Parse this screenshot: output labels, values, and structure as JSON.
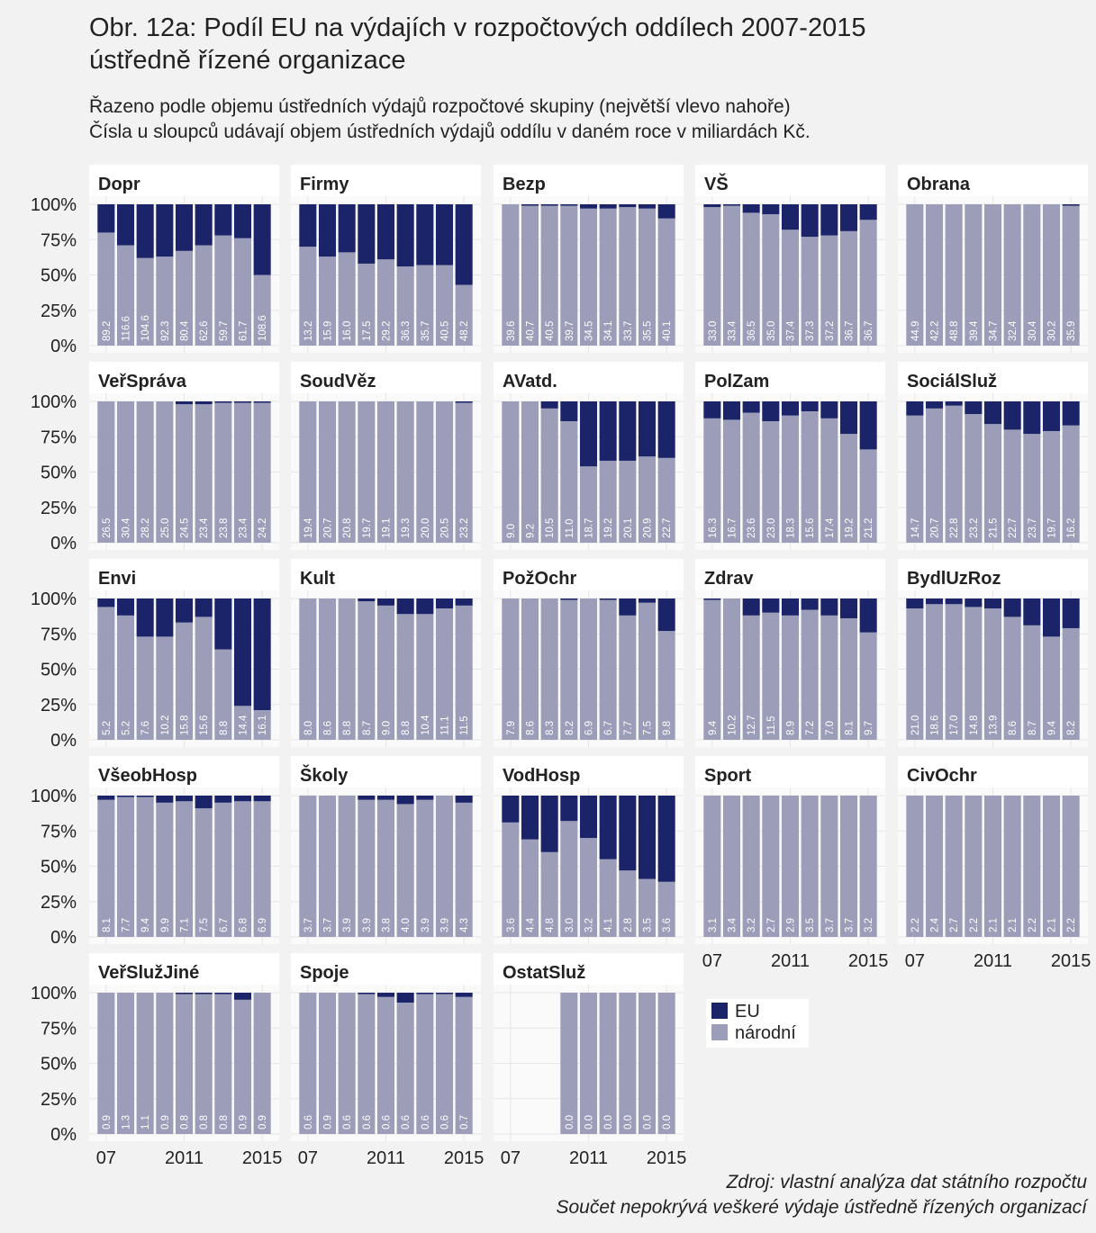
{
  "chart_data": {
    "type": "bar",
    "stacked": true,
    "title": [
      "Obr. 12a: Podíl EU na výdajích v rozpočtových oddílech 2007-2015",
      "ústředně řízené organizace"
    ],
    "subtitle": [
      "Řazeno podle objemu ústředních výdajů rozpočtové skupiny (největší vlevo nahoře)",
      "Čísla u sloupců udávají objem ústředních výdajů oddílu v daném roce v miliardách Kč."
    ],
    "caption": [
      "Zdroj: vlastní analýza dat státního rozpočtu",
      "Součet nepokrývá veškeré výdaje ústředně řízených organizací"
    ],
    "x": [
      2007,
      2008,
      2009,
      2010,
      2011,
      2012,
      2013,
      2014,
      2015
    ],
    "xlim": [
      2006.5,
      2015.5
    ],
    "xticks": [
      {
        "value": 2007,
        "label": "07"
      },
      2011,
      2015
    ],
    "ylim": [
      0,
      100
    ],
    "yticks": [
      {
        "value": 0,
        "label": "0%"
      },
      {
        "value": 25,
        "label": "25%"
      },
      {
        "value": 50,
        "label": "50%"
      },
      {
        "value": 75,
        "label": "75%"
      },
      {
        "value": 100,
        "label": "100%"
      }
    ],
    "grid": true,
    "series": [
      {
        "name": "EU",
        "color": "#1b2468"
      },
      {
        "name": "národní",
        "color": "#9b9db9"
      }
    ],
    "panels": [
      {
        "name": "Dopr",
        "eu": [
          20,
          29,
          38,
          37,
          33,
          29,
          22,
          24,
          50
        ],
        "national": [
          80,
          71,
          62,
          63,
          67,
          71,
          78,
          76,
          50
        ],
        "value_labels": [
          "89.2",
          "116.6",
          "104.6",
          "92.3",
          "80.4",
          "62.6",
          "59.7",
          "61.7",
          "108.6"
        ]
      },
      {
        "name": "Firmy",
        "eu": [
          30,
          37,
          34,
          42,
          39,
          44,
          43,
          43,
          57
        ],
        "national": [
          70,
          63,
          66,
          58,
          61,
          56,
          57,
          57,
          43
        ],
        "value_labels": [
          "13.2",
          "15.9",
          "16.0",
          "17.5",
          "29.2",
          "36.3",
          "35.7",
          "40.5",
          "48.2"
        ]
      },
      {
        "name": "Bezp",
        "eu": [
          0,
          1,
          1,
          1,
          3,
          3,
          2,
          3,
          10
        ],
        "national": [
          100,
          99,
          99,
          99,
          97,
          97,
          98,
          97,
          90
        ],
        "value_labels": [
          "39.6",
          "40.7",
          "40.5",
          "39.7",
          "34.5",
          "34.1",
          "33.7",
          "35.5",
          "40.1"
        ]
      },
      {
        "name": "VŠ",
        "eu": [
          2,
          1,
          6,
          7,
          18,
          23,
          22,
          19,
          11
        ],
        "national": [
          98,
          99,
          94,
          93,
          82,
          77,
          78,
          81,
          89
        ],
        "value_labels": [
          "33.0",
          "33.4",
          "36.5",
          "35.0",
          "37.4",
          "37.3",
          "37.2",
          "36.7",
          "36.7"
        ]
      },
      {
        "name": "Obrana",
        "eu": [
          0,
          0,
          0,
          0,
          0,
          0,
          0,
          0,
          1
        ],
        "national": [
          100,
          100,
          100,
          100,
          100,
          100,
          100,
          100,
          99
        ],
        "value_labels": [
          "44.9",
          "42.2",
          "48.8",
          "39.4",
          "34.7",
          "32.4",
          "30.4",
          "30.2",
          "35.9"
        ]
      },
      {
        "name": "VeřSpráva",
        "eu": [
          0,
          0,
          0,
          0,
          2,
          2,
          1,
          1,
          1
        ],
        "national": [
          100,
          100,
          100,
          100,
          98,
          98,
          99,
          99,
          99
        ],
        "value_labels": [
          "26.5",
          "30.4",
          "28.2",
          "25.0",
          "24.5",
          "23.4",
          "23.8",
          "23.4",
          "24.2"
        ]
      },
      {
        "name": "SoudVěz",
        "eu": [
          0,
          0,
          0,
          0,
          0,
          0,
          0,
          0,
          1
        ],
        "national": [
          100,
          100,
          100,
          100,
          100,
          100,
          100,
          100,
          99
        ],
        "value_labels": [
          "19.4",
          "20.7",
          "20.8",
          "19.7",
          "19.1",
          "19.3",
          "20.0",
          "20.5",
          "23.2"
        ]
      },
      {
        "name": "AVatd.",
        "eu": [
          0,
          0,
          5,
          14,
          46,
          42,
          42,
          39,
          40
        ],
        "national": [
          100,
          100,
          95,
          86,
          54,
          58,
          58,
          61,
          60
        ],
        "value_labels": [
          "9.0",
          "9.2",
          "10.5",
          "11.0",
          "18.7",
          "19.2",
          "20.1",
          "20.9",
          "22.7"
        ]
      },
      {
        "name": "PolZam",
        "eu": [
          12,
          13,
          8,
          14,
          10,
          7,
          12,
          23,
          34
        ],
        "national": [
          88,
          87,
          92,
          86,
          90,
          93,
          88,
          77,
          66
        ],
        "value_labels": [
          "16.3",
          "16.7",
          "23.6",
          "23.0",
          "18.3",
          "15.6",
          "17.4",
          "19.2",
          "21.2"
        ]
      },
      {
        "name": "SociálSluž",
        "eu": [
          10,
          5,
          3,
          9,
          16,
          20,
          23,
          21,
          17
        ],
        "national": [
          90,
          95,
          97,
          91,
          84,
          80,
          77,
          79,
          83
        ],
        "value_labels": [
          "14.7",
          "20.7",
          "22.8",
          "23.2",
          "21.5",
          "22.7",
          "23.7",
          "19.7",
          "16.2"
        ]
      },
      {
        "name": "Envi",
        "eu": [
          6,
          12,
          27,
          27,
          17,
          13,
          36,
          76,
          79
        ],
        "national": [
          94,
          88,
          73,
          73,
          83,
          87,
          64,
          24,
          21
        ],
        "value_labels": [
          "5.2",
          "5.2",
          "7.6",
          "10.2",
          "15.8",
          "15.6",
          "8.8",
          "14.4",
          "16.1"
        ]
      },
      {
        "name": "Kult",
        "eu": [
          0,
          0,
          0,
          2,
          5,
          11,
          11,
          7,
          5
        ],
        "national": [
          100,
          100,
          100,
          98,
          95,
          89,
          89,
          93,
          95
        ],
        "value_labels": [
          "8.0",
          "8.6",
          "8.8",
          "8.7",
          "9.0",
          "8.8",
          "10.4",
          "11.1",
          "11.5"
        ]
      },
      {
        "name": "PožOchr",
        "eu": [
          0,
          0,
          0,
          1,
          0,
          1,
          12,
          3,
          23
        ],
        "national": [
          100,
          100,
          100,
          99,
          100,
          99,
          88,
          97,
          77
        ],
        "value_labels": [
          "7.9",
          "8.6",
          "8.3",
          "8.2",
          "6.9",
          "6.7",
          "7.7",
          "7.5",
          "9.8"
        ]
      },
      {
        "name": "Zdrav",
        "eu": [
          1,
          0,
          12,
          10,
          12,
          8,
          12,
          14,
          24
        ],
        "national": [
          99,
          100,
          88,
          90,
          88,
          92,
          88,
          86,
          76
        ],
        "value_labels": [
          "9.4",
          "10.2",
          "12.7",
          "11.5",
          "8.9",
          "7.2",
          "7.0",
          "8.1",
          "9.7"
        ]
      },
      {
        "name": "BydlUzRoz",
        "eu": [
          7,
          4,
          4,
          6,
          7,
          13,
          19,
          27,
          21
        ],
        "national": [
          93,
          96,
          96,
          94,
          93,
          87,
          81,
          73,
          79
        ],
        "value_labels": [
          "21.0",
          "18.6",
          "17.0",
          "14.8",
          "13.9",
          "8.6",
          "8.7",
          "9.4",
          "8.2"
        ]
      },
      {
        "name": "VšeobHosp",
        "eu": [
          3,
          1,
          1,
          5,
          4,
          9,
          5,
          4,
          4
        ],
        "national": [
          97,
          99,
          99,
          95,
          96,
          91,
          95,
          96,
          96
        ],
        "value_labels": [
          "8.1",
          "7.7",
          "9.4",
          "9.9",
          "7.1",
          "7.5",
          "6.7",
          "6.8",
          "6.9"
        ]
      },
      {
        "name": "Školy",
        "eu": [
          0,
          0,
          0,
          3,
          3,
          6,
          3,
          0,
          5
        ],
        "national": [
          100,
          100,
          100,
          97,
          97,
          94,
          97,
          100,
          95
        ],
        "value_labels": [
          "3.7",
          "3.7",
          "3.9",
          "3.9",
          "3.8",
          "4.0",
          "3.9",
          "3.9",
          "4.3"
        ]
      },
      {
        "name": "VodHosp",
        "eu": [
          19,
          31,
          40,
          18,
          30,
          45,
          53,
          59,
          61
        ],
        "national": [
          81,
          69,
          60,
          82,
          70,
          55,
          47,
          41,
          39
        ],
        "value_labels": [
          "3.6",
          "4.4",
          "4.8",
          "3.0",
          "3.2",
          "4.1",
          "2.8",
          "3.5",
          "3.6"
        ]
      },
      {
        "name": "Sport",
        "eu": [
          0,
          0,
          0,
          0,
          0,
          0,
          0,
          0,
          0
        ],
        "national": [
          100,
          100,
          100,
          100,
          100,
          100,
          100,
          100,
          100
        ],
        "value_labels": [
          "3.1",
          "3.4",
          "3.2",
          "2.7",
          "2.9",
          "3.5",
          "3.7",
          "3.7",
          "3.2"
        ]
      },
      {
        "name": "CivOchr",
        "eu": [
          0,
          0,
          0,
          0,
          0,
          0,
          0,
          0,
          0
        ],
        "national": [
          100,
          100,
          100,
          100,
          100,
          100,
          100,
          100,
          100
        ],
        "value_labels": [
          "2.2",
          "2.4",
          "2.7",
          "2.2",
          "2.1",
          "2.1",
          "2.2",
          "2.1",
          "2.2"
        ]
      },
      {
        "name": "VeřSlužJiné",
        "eu": [
          0,
          0,
          0,
          0,
          1,
          1,
          1,
          5,
          0
        ],
        "national": [
          100,
          100,
          100,
          100,
          99,
          99,
          99,
          95,
          100
        ],
        "value_labels": [
          "0.9",
          "1.3",
          "1.1",
          "0.9",
          "0.8",
          "0.8",
          "0.8",
          "0.9",
          "0.9"
        ]
      },
      {
        "name": "Spoje",
        "eu": [
          0,
          0,
          0,
          1,
          3,
          7,
          1,
          1,
          3
        ],
        "national": [
          100,
          100,
          100,
          99,
          97,
          93,
          99,
          99,
          97
        ],
        "value_labels": [
          "0.6",
          "0.9",
          "0.6",
          "0.6",
          "0.6",
          "0.6",
          "0.6",
          "0.6",
          "0.7"
        ]
      },
      {
        "name": "OstatSluž",
        "eu": [
          null,
          null,
          null,
          0,
          0,
          0,
          0,
          0,
          0
        ],
        "national": [
          null,
          null,
          null,
          100,
          100,
          100,
          100,
          100,
          100
        ],
        "value_labels": [
          null,
          null,
          null,
          "0.0",
          "0.0",
          "0.0",
          "0.0",
          "0.0",
          "0.0"
        ]
      }
    ]
  }
}
